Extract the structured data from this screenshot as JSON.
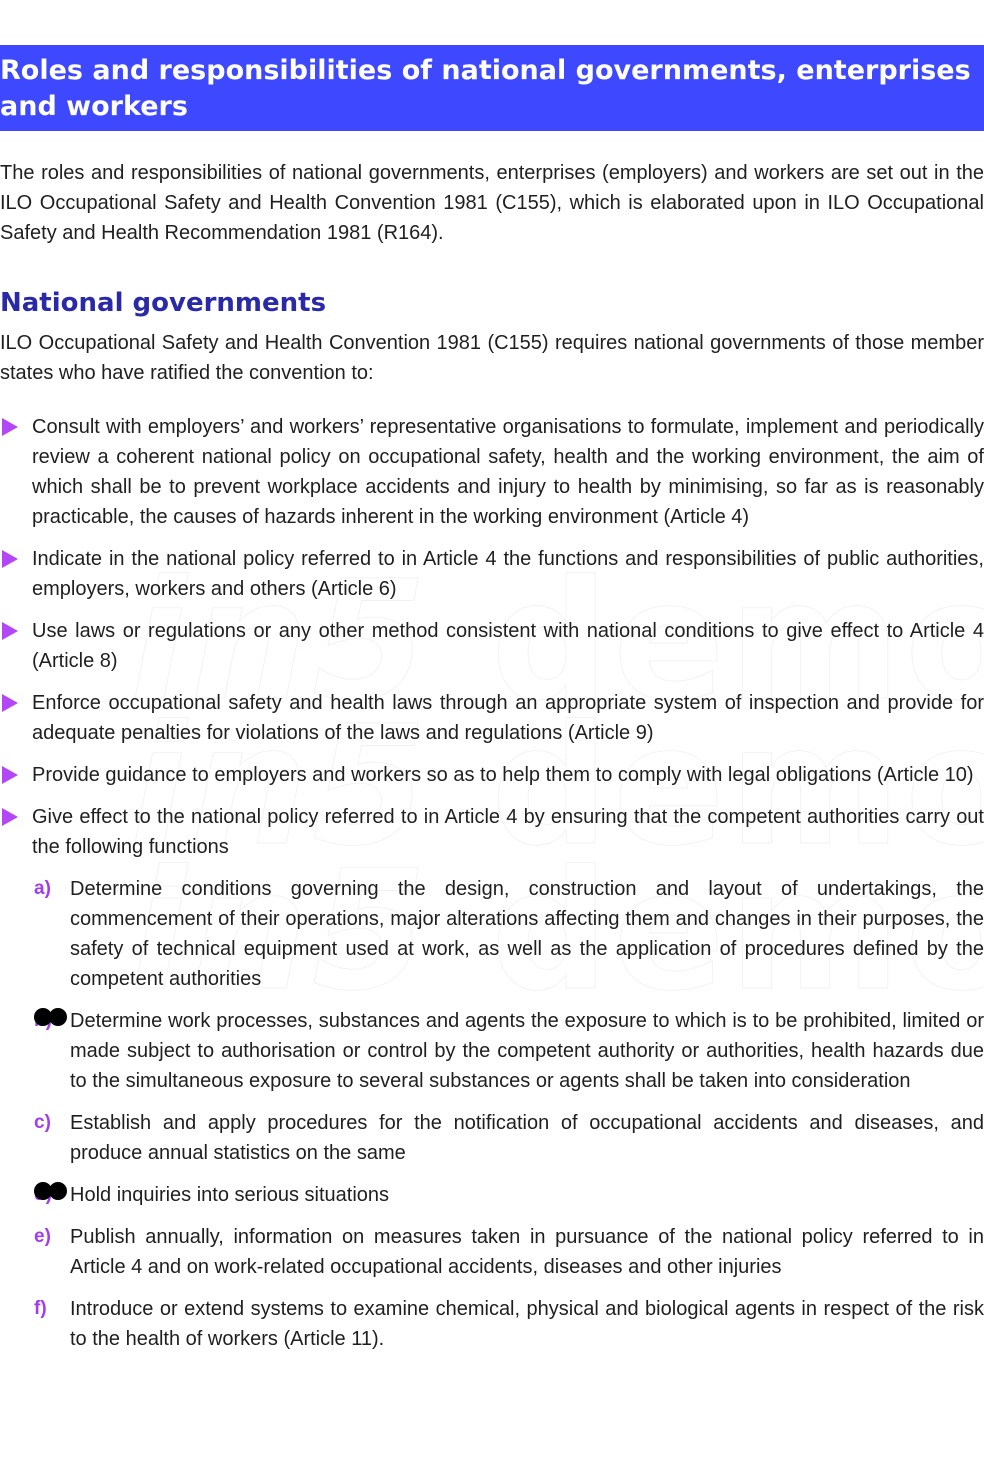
{
  "header": {
    "title": "Roles and responsibilities of national governments, enterprises and workers"
  },
  "intro": "The roles and responsibilities of national governments, enterprises (employers) and workers are set out in the ILO Occupational Safety and Health Convention 1981 (C155), which is elaborated upon in ILO Occupational Safety and Health Recommendation 1981 (R164).",
  "section": {
    "heading": "National governments",
    "lead": "ILO Occupational Safety and Health Convention 1981 (C155) requires national governments of those member states who have ratified the convention to:"
  },
  "bullets": [
    "Consult with employers’ and workers’ representative organisations to formulate, implement and periodically review a coherent national policy on occupational safety, health and the working environment, the aim of which shall be to prevent workplace accidents and injury to health by minimising, so far as is reasonably practicable, the causes of hazards inherent in the working environment (Article 4)",
    "Indicate in the national policy referred to in Article 4 the functions and responsibilities of public authorities, employers, workers and others (Article 6)",
    "Use laws or regulations or any other method consistent with national conditions to give effect to Article 4 (Article 8)",
    "Enforce occupational safety and health laws through an appropriate system of inspection and provide for adequate penalties for violations of the laws and regulations (Article 9)",
    "Provide guidance to employers and workers so as to help them to comply with legal obligations (Article 10)",
    "Give effect to the national policy referred to in Article 4 by ensuring that the competent authorities carry out the following functions"
  ],
  "sub_items": [
    {
      "letter": "a)",
      "text": "Determine conditions governing the design, construction and layout of undertakings, the commencement of their operations, major alterations affecting them and changes in their purposes, the safety of technical equipment used at work, as well as the application of procedures defined by the competent authorities"
    },
    {
      "letter": "b)",
      "text": "Determine work processes, substances and agents the exposure to which is to be prohibited, limited or made subject to authorisation or control by the competent authority or authorities, health hazards due to the simultaneous exposure to several substances or agents shall be taken into consideration"
    },
    {
      "letter": "c)",
      "text": "Establish and apply procedures for the notification of occupational accidents and diseases, and produce annual statistics on the same"
    },
    {
      "letter": "d)",
      "text": "Hold inquiries into serious situations"
    },
    {
      "letter": "e)",
      "text": "Publish annually, information on measures taken in pursuance of the national policy referred to in Article 4 and on work-related occupational accidents, diseases and other injuries"
    },
    {
      "letter": "f)",
      "text": "Introduce or extend systems to examine chemical, physical and biological agents in respect of the risk to the health of workers (Article 11)."
    }
  ],
  "watermark": {
    "line1": "in5",
    "line1b": "demo",
    "line2": "in5",
    "line2b": "demo",
    "line3": "in5",
    "line3b": "demo"
  },
  "colors": {
    "banner": "#3d48ff",
    "heading": "#2a2aa8",
    "bullet": "#b347f7",
    "letter": "#a33cf0"
  }
}
